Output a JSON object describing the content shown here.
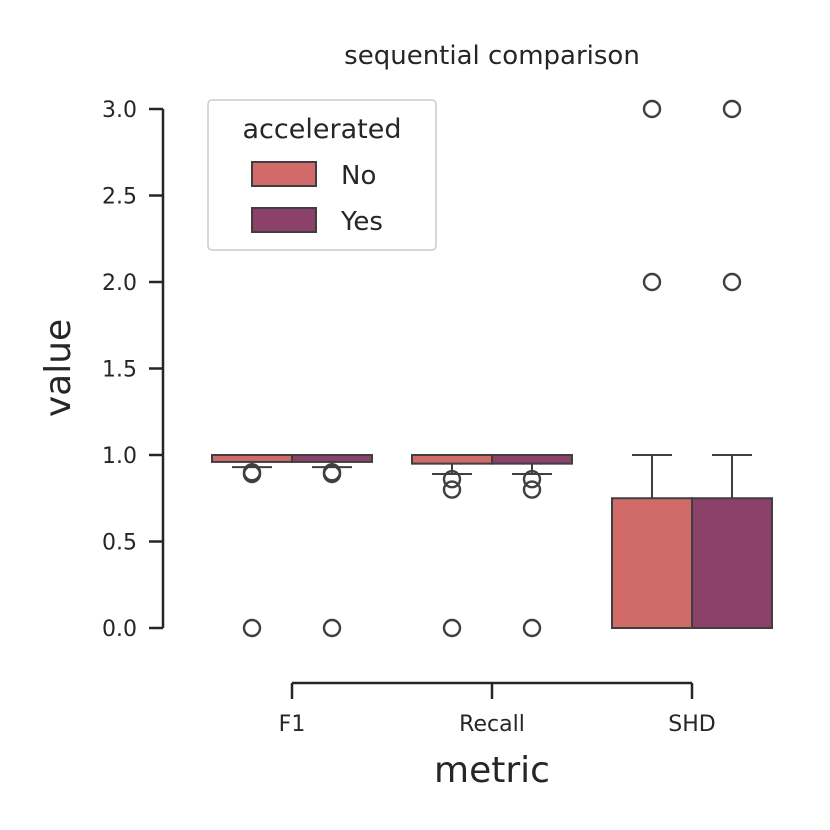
{
  "chart_data": {
    "type": "box",
    "title": "sequential comparison",
    "xlabel": "metric",
    "ylabel": "value",
    "categories": [
      "F1",
      "Recall",
      "SHD"
    ],
    "ylim": [
      0,
      3
    ],
    "yticks": [
      "0.0",
      "0.5",
      "1.0",
      "1.5",
      "2.0",
      "2.5",
      "3.0"
    ],
    "legend": {
      "title": "accelerated",
      "position": "upper-left"
    },
    "grid": false,
    "series": [
      {
        "name": "No",
        "color": "#d06b6a",
        "boxes": [
          {
            "category": "F1",
            "whisker_low": 0.93,
            "q1": 0.96,
            "median": 1.0,
            "q3": 1.0,
            "whisker_high": 1.0,
            "outliers": [
              0.0,
              0.89,
              0.9
            ]
          },
          {
            "category": "Recall",
            "whisker_low": 0.89,
            "q1": 0.95,
            "median": 1.0,
            "q3": 1.0,
            "whisker_high": 1.0,
            "outliers": [
              0.0,
              0.8,
              0.86
            ]
          },
          {
            "category": "SHD",
            "whisker_low": 0.0,
            "q1": 0.0,
            "median": 0.0,
            "q3": 0.75,
            "whisker_high": 1.0,
            "outliers": [
              2.0,
              3.0
            ]
          }
        ]
      },
      {
        "name": "Yes",
        "color": "#8c416b",
        "boxes": [
          {
            "category": "F1",
            "whisker_low": 0.93,
            "q1": 0.96,
            "median": 1.0,
            "q3": 1.0,
            "whisker_high": 1.0,
            "outliers": [
              0.0,
              0.89,
              0.9
            ]
          },
          {
            "category": "Recall",
            "whisker_low": 0.89,
            "q1": 0.95,
            "median": 1.0,
            "q3": 1.0,
            "whisker_high": 1.0,
            "outliers": [
              0.0,
              0.8,
              0.86
            ]
          },
          {
            "category": "SHD",
            "whisker_low": 0.0,
            "q1": 0.0,
            "median": 0.0,
            "q3": 0.75,
            "whisker_high": 1.0,
            "outliers": [
              2.0,
              3.0
            ]
          }
        ]
      }
    ]
  }
}
